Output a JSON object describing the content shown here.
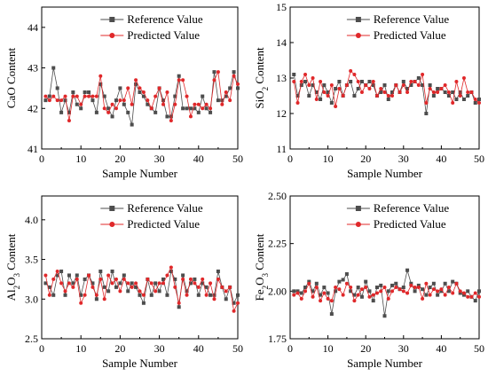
{
  "chart_data": [
    {
      "type": "line",
      "xlabel": "Sample Number",
      "ylabel": "CaO Content",
      "ylabel_parts": [
        {
          "t": "CaO Content",
          "s": false
        }
      ],
      "xlim": [
        0,
        50
      ],
      "ylim": [
        41,
        44.5
      ],
      "xticks": [
        0,
        10,
        20,
        30,
        40,
        50
      ],
      "yticks": [
        41,
        42,
        43,
        44
      ],
      "ytick_labels": [
        "41",
        "42",
        "43",
        "44"
      ],
      "legend_position": "top-right",
      "series": [
        {
          "name": "Reference Value",
          "color": "#4d4d4d",
          "marker": "square",
          "values": [
            42.2,
            42.3,
            43.0,
            42.5,
            41.9,
            42.2,
            41.9,
            42.4,
            42.1,
            42.0,
            42.4,
            42.4,
            42.2,
            41.9,
            42.6,
            42.3,
            42.0,
            41.8,
            42.2,
            42.5,
            42.1,
            41.9,
            41.6,
            42.6,
            42.4,
            42.3,
            42.1,
            42.0,
            41.9,
            42.5,
            42.2,
            41.8,
            41.8,
            42.3,
            42.8,
            42.0,
            42.0,
            42.0,
            42.0,
            41.9,
            42.3,
            42.0,
            41.9,
            42.9,
            42.2,
            42.2,
            42.3,
            42.5,
            42.9,
            42.5
          ]
        },
        {
          "name": "Predicted Value",
          "color": "#e0282a",
          "marker": "circle",
          "values": [
            42.3,
            42.2,
            42.3,
            42.2,
            42.2,
            42.3,
            41.7,
            42.3,
            42.3,
            42.1,
            42.3,
            42.3,
            42.3,
            42.3,
            42.8,
            42.0,
            41.9,
            42.1,
            42.0,
            42.2,
            42.2,
            42.5,
            42.1,
            42.7,
            42.5,
            42.4,
            42.2,
            42.0,
            42.3,
            42.5,
            42.1,
            42.4,
            41.7,
            42.1,
            42.7,
            42.7,
            42.3,
            41.8,
            42.1,
            42.1,
            42.0,
            42.1,
            42.0,
            42.7,
            42.9,
            42.1,
            42.4,
            42.2,
            42.8,
            42.6
          ]
        }
      ]
    },
    {
      "type": "line",
      "xlabel": "Sample Number",
      "ylabel": "SiO2 Content",
      "ylabel_parts": [
        {
          "t": "SiO",
          "s": false
        },
        {
          "t": "2",
          "s": true
        },
        {
          "t": " Content",
          "s": false
        }
      ],
      "xlim": [
        0,
        50
      ],
      "ylim": [
        11,
        15
      ],
      "xticks": [
        0,
        10,
        20,
        30,
        40,
        50
      ],
      "yticks": [
        11,
        12,
        13,
        14,
        15
      ],
      "ytick_labels": [
        "11",
        "12",
        "13",
        "14",
        "15"
      ],
      "legend_position": "top-right",
      "series": [
        {
          "name": "Reference Value",
          "color": "#4d4d4d",
          "marker": "square",
          "values": [
            13.1,
            12.5,
            12.8,
            12.9,
            12.5,
            12.8,
            12.6,
            12.4,
            12.8,
            12.6,
            12.3,
            12.7,
            12.9,
            12.5,
            12.8,
            12.9,
            12.5,
            12.7,
            12.9,
            12.8,
            12.9,
            12.8,
            12.5,
            12.6,
            12.8,
            12.4,
            12.6,
            12.8,
            12.6,
            12.9,
            12.7,
            12.8,
            12.9,
            13.0,
            12.8,
            12.0,
            12.8,
            12.5,
            12.7,
            12.7,
            12.6,
            12.5,
            12.6,
            12.4,
            12.6,
            12.4,
            12.5,
            12.6,
            12.3,
            12.4
          ]
        },
        {
          "name": "Predicted Value",
          "color": "#e0282a",
          "marker": "circle",
          "values": [
            12.9,
            12.3,
            12.9,
            13.1,
            12.8,
            13.0,
            12.4,
            12.9,
            12.6,
            12.5,
            12.8,
            12.2,
            12.7,
            12.5,
            12.8,
            13.2,
            13.1,
            12.9,
            12.6,
            12.8,
            12.7,
            12.9,
            12.5,
            12.7,
            12.6,
            12.5,
            12.5,
            12.8,
            12.6,
            12.8,
            12.6,
            12.9,
            12.9,
            12.8,
            13.1,
            12.3,
            12.7,
            12.6,
            12.6,
            12.7,
            12.8,
            12.6,
            12.3,
            12.9,
            12.5,
            13.0,
            12.6,
            12.6,
            12.4,
            12.3
          ]
        }
      ]
    },
    {
      "type": "line",
      "xlabel": "Sample Number",
      "ylabel": "Al2O3 Content",
      "ylabel_parts": [
        {
          "t": "Al",
          "s": false
        },
        {
          "t": "2",
          "s": true
        },
        {
          "t": "O",
          "s": false
        },
        {
          "t": "3",
          "s": true
        },
        {
          "t": " Content",
          "s": false
        }
      ],
      "xlim": [
        0,
        50
      ],
      "ylim": [
        2.5,
        4.3
      ],
      "xticks": [
        0,
        10,
        20,
        30,
        40,
        50
      ],
      "yticks": [
        2.5,
        3.0,
        3.5,
        4.0
      ],
      "ytick_labels": [
        "2.5",
        "3.0",
        "3.5",
        "4.0"
      ],
      "legend_position": "top-right",
      "series": [
        {
          "name": "Reference Value",
          "color": "#4d4d4d",
          "marker": "square",
          "values": [
            3.2,
            3.15,
            3.05,
            3.3,
            3.35,
            3.05,
            3.3,
            3.2,
            3.3,
            3.05,
            3.25,
            3.3,
            3.2,
            3.0,
            3.35,
            3.15,
            3.1,
            3.35,
            3.15,
            3.2,
            3.3,
            3.1,
            3.2,
            3.15,
            3.05,
            2.95,
            3.25,
            3.05,
            3.2,
            3.1,
            3.25,
            3.05,
            3.35,
            3.25,
            2.9,
            3.3,
            3.1,
            3.2,
            3.25,
            3.05,
            3.2,
            3.15,
            3.05,
            3.05,
            3.35,
            3.15,
            3.0,
            3.15,
            2.95,
            3.05
          ]
        },
        {
          "name": "Predicted Value",
          "color": "#e0282a",
          "marker": "circle",
          "values": [
            3.3,
            3.05,
            3.25,
            3.35,
            3.2,
            3.1,
            3.2,
            3.15,
            3.25,
            2.95,
            3.05,
            3.3,
            3.15,
            3.05,
            3.25,
            3.0,
            3.3,
            3.2,
            3.25,
            3.1,
            3.25,
            3.2,
            3.15,
            3.2,
            3.1,
            3.05,
            3.25,
            3.2,
            3.1,
            3.2,
            3.2,
            3.3,
            3.4,
            3.15,
            2.95,
            3.25,
            3.05,
            3.25,
            3.2,
            3.15,
            3.25,
            3.05,
            3.2,
            3.0,
            3.25,
            3.15,
            3.1,
            3.15,
            2.85,
            2.95
          ]
        }
      ]
    },
    {
      "type": "line",
      "xlabel": "Sample Number",
      "ylabel": "Fe2O3 Content",
      "ylabel_parts": [
        {
          "t": "Fe",
          "s": false
        },
        {
          "t": "2",
          "s": true
        },
        {
          "t": "O",
          "s": false
        },
        {
          "t": "3",
          "s": true
        },
        {
          "t": " Content",
          "s": false
        }
      ],
      "xlim": [
        0,
        50
      ],
      "ylim": [
        1.75,
        2.5
      ],
      "xticks": [
        0,
        10,
        20,
        30,
        40,
        50
      ],
      "yticks": [
        1.75,
        2.0,
        2.25,
        2.5
      ],
      "ytick_labels": [
        "1.75",
        "2.00",
        "2.25",
        "2.50"
      ],
      "legend_position": "top-right",
      "series": [
        {
          "name": "Reference Value",
          "color": "#4d4d4d",
          "marker": "square",
          "values": [
            2.0,
            2.0,
            1.99,
            2.02,
            2.05,
            2.0,
            2.04,
            1.98,
            2.02,
            1.99,
            1.88,
            2.0,
            2.05,
            2.06,
            2.09,
            2.0,
            1.98,
            2.02,
            1.97,
            2.05,
            2.0,
            1.95,
            2.02,
            2.03,
            1.87,
            2.0,
            2.03,
            2.04,
            2.01,
            2.02,
            2.11,
            2.04,
            2.0,
            2.03,
            2.01,
            1.98,
            2.02,
            2.04,
            1.98,
            2.0,
            2.04,
            2.0,
            2.05,
            2.04,
            1.99,
            1.98,
            2.0,
            1.97,
            1.95,
            2.0
          ]
        },
        {
          "name": "Predicted Value",
          "color": "#e0282a",
          "marker": "circle",
          "values": [
            1.98,
            1.99,
            1.96,
            2.0,
            2.04,
            1.97,
            2.02,
            1.95,
            1.99,
            1.96,
            1.95,
            2.02,
            2.01,
            1.98,
            2.04,
            2.02,
            1.95,
            1.98,
            2.01,
            2.02,
            1.97,
            1.98,
            1.99,
            2.0,
            2.02,
            1.96,
            2.0,
            2.02,
            2.01,
            2.0,
            1.99,
            2.03,
            2.02,
            2.02,
            1.96,
            2.04,
            1.98,
            2.01,
            2.0,
            2.01,
            1.98,
            2.02,
            1.99,
            2.04,
            2.0,
            1.99,
            1.97,
            1.97,
            1.99,
            1.97
          ]
        }
      ]
    }
  ]
}
